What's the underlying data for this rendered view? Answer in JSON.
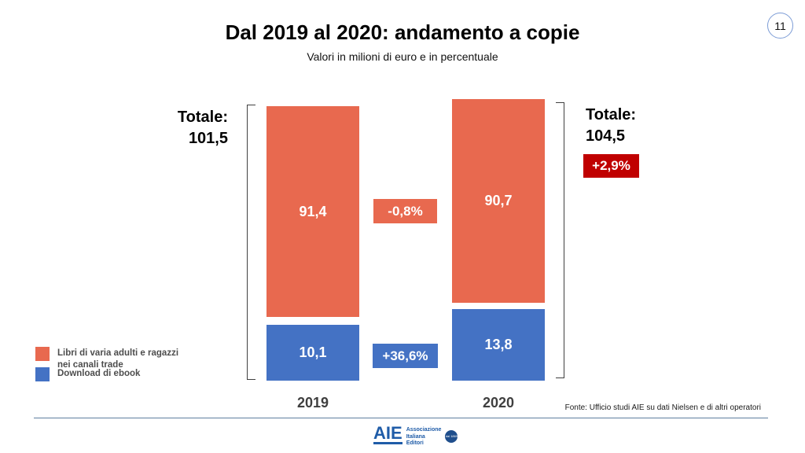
{
  "page": {
    "number": "11"
  },
  "header": {
    "title": "Dal 2019 al 2020: andamento a copie",
    "subtitle": "Valori in milioni di euro e in percentuale"
  },
  "chart_data": {
    "type": "bar",
    "stacked": true,
    "title": "Dal 2019 al 2020: andamento a copie",
    "subtitle": "Valori in milioni di euro e in percentuale",
    "categories": [
      "2019",
      "2020"
    ],
    "series": [
      {
        "name": "Libri di varia adulti e ragazzi nei canali trade",
        "values": [
          91.4,
          90.7
        ],
        "color": "#E8694F",
        "change_pct": -0.8
      },
      {
        "name": "Download di ebook",
        "values": [
          10.1,
          13.8
        ],
        "color": "#4472C4",
        "change_pct": 36.6
      }
    ],
    "totals": {
      "values": [
        101.5,
        104.5
      ],
      "change_pct": 2.9
    },
    "legend_position": "bottom-left",
    "grid": false,
    "value_format": "decimal-comma"
  },
  "totals": {
    "left": {
      "label": "Totale:",
      "value": "101,5"
    },
    "right": {
      "label": "Totale:",
      "value": "104,5",
      "change": "+2,9%"
    }
  },
  "bars": {
    "2019": {
      "trade": "91,4",
      "ebook": "10,1",
      "year": "2019"
    },
    "2020": {
      "trade": "90,7",
      "ebook": "13,8",
      "year": "2020"
    }
  },
  "changes": {
    "trade": "-0,8%",
    "ebook": "+36,6%"
  },
  "legend": {
    "items": [
      {
        "line1": "Libri di varia adulti e ragazzi",
        "line2": "nei canali trade"
      },
      {
        "line1": "Download di ebook",
        "line2": ""
      }
    ]
  },
  "footer": {
    "source": "Fonte: Ufficio studi AIE su  dati Nielsen e di altri operatori",
    "logo": {
      "acronym": "AIE",
      "name_line1": "Associazione",
      "name_line2": "Italiana",
      "name_line3": "Editori",
      "badge": "dal 1869"
    }
  },
  "colors": {
    "trade": "#E8694F",
    "ebook": "#4472C4",
    "total_badge": "#C00000",
    "logo_blue": "#1F5CA8",
    "divider": "#5f7f9f",
    "page_circle_border": "#7C9CD6"
  }
}
